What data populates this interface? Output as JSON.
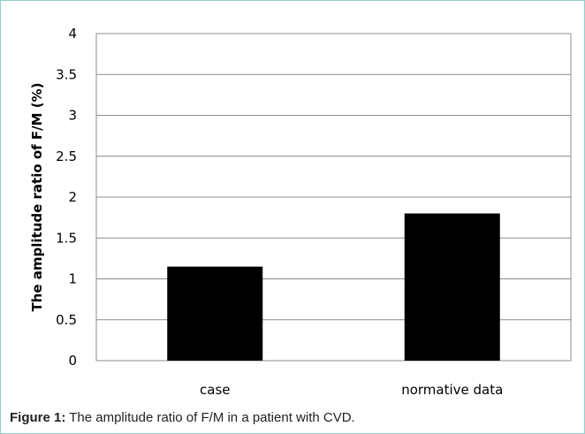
{
  "chart_data": {
    "type": "bar",
    "categories": [
      "case",
      "normative data"
    ],
    "values": [
      1.15,
      1.8
    ],
    "title": "",
    "xlabel": "",
    "ylabel": "The amplitude ratio of F/M (%)",
    "ylim": [
      0,
      4
    ],
    "yticks": [
      "0",
      "0.5",
      "1",
      "1.5",
      "2",
      "2.5",
      "3",
      "3.5",
      "4"
    ],
    "grid": true,
    "bar_color": "#000000",
    "grid_color": "#8c8c8c"
  },
  "caption": {
    "label": "Figure 1:",
    "text": " The amplitude ratio of F/M in a patient with CVD."
  }
}
